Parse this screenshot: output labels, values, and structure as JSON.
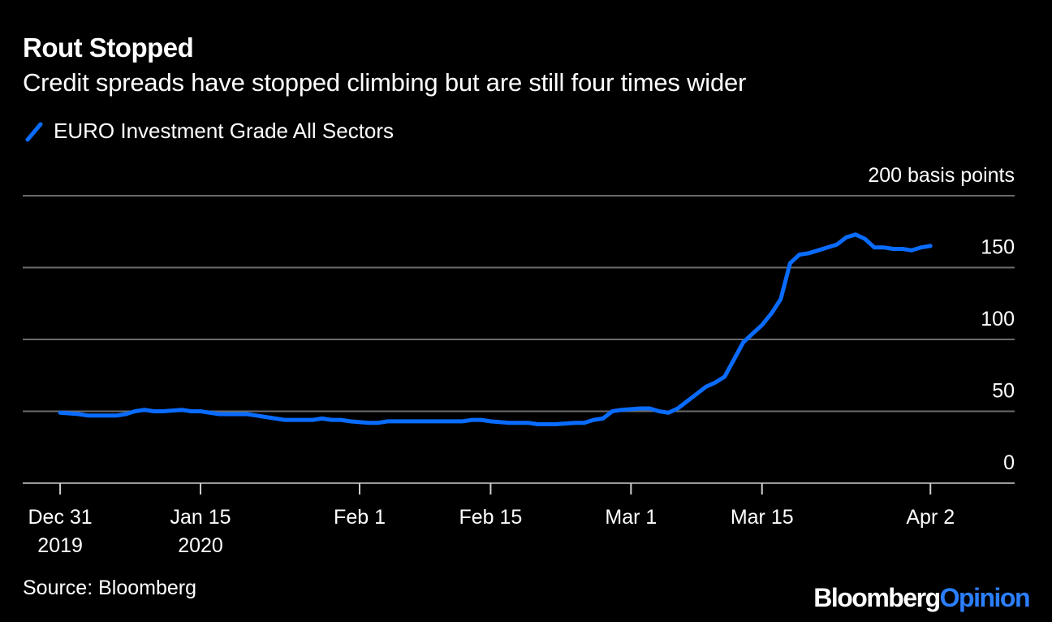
{
  "title": "Rout Stopped",
  "subtitle": "Credit spreads have stopped climbing but are still four times wider",
  "legend_label": "EURO Investment Grade All Sectors",
  "source": "Source: Bloomberg",
  "brand": {
    "part1": "Bloomberg",
    "part2": "Opinion"
  },
  "colors": {
    "background": "#000000",
    "line": "#0a6cff",
    "grid": "#6b6b6b",
    "text": "#ffffff",
    "brand_accent": "#2b7fff"
  },
  "chart_data": {
    "type": "line",
    "title": "Rout Stopped",
    "subtitle": "Credit spreads have stopped climbing but are still four times wider",
    "ylabel": "basis points",
    "ylim": [
      0,
      200
    ],
    "yticks": [
      {
        "value": 200,
        "label": "200 basis points"
      },
      {
        "value": 150,
        "label": "150"
      },
      {
        "value": 100,
        "label": "100"
      },
      {
        "value": 50,
        "label": "50"
      },
      {
        "value": 0,
        "label": "0"
      }
    ],
    "xrange_days": [
      -4,
      102
    ],
    "xticks": [
      {
        "day": 0,
        "label": [
          "Dec 31",
          "2019"
        ]
      },
      {
        "day": 15,
        "label": [
          "Jan 15",
          "2020"
        ]
      },
      {
        "day": 32,
        "label": [
          "Feb 1"
        ]
      },
      {
        "day": 46,
        "label": [
          "Feb 15"
        ]
      },
      {
        "day": 61,
        "label": [
          "Mar 1"
        ]
      },
      {
        "day": 75,
        "label": [
          "Mar 15"
        ]
      },
      {
        "day": 93,
        "label": [
          "Apr 2"
        ]
      }
    ],
    "series": [
      {
        "name": "EURO Investment Grade All Sectors",
        "x_days": [
          0,
          2,
          3,
          4,
          6,
          7,
          8,
          9,
          10,
          11,
          13,
          14,
          15,
          16,
          17,
          18,
          20,
          21,
          22,
          24,
          25,
          27,
          28,
          29,
          30,
          31,
          33,
          34,
          35,
          36,
          38,
          39,
          41,
          42,
          43,
          44,
          45,
          46,
          48,
          49,
          50,
          51,
          52,
          53,
          55,
          56,
          57,
          58,
          59,
          60,
          62,
          63,
          64,
          65,
          66,
          67,
          68,
          69,
          70,
          71,
          72,
          73,
          74,
          75,
          76,
          77,
          78,
          79,
          80,
          81,
          82,
          83,
          84,
          85,
          86,
          87,
          88,
          89,
          90,
          91,
          92,
          93
        ],
        "values": [
          49,
          48,
          47,
          47,
          47,
          48,
          50,
          51,
          50,
          50,
          51,
          50,
          50,
          49,
          48,
          48,
          48,
          47,
          46,
          44,
          44,
          44,
          45,
          44,
          44,
          43,
          42,
          42,
          43,
          43,
          43,
          43,
          43,
          43,
          43,
          44,
          44,
          43,
          42,
          42,
          42,
          41,
          41,
          41,
          42,
          42,
          44,
          45,
          50,
          51,
          52,
          52,
          50,
          49,
          52,
          57,
          62,
          67,
          70,
          74,
          86,
          98,
          104,
          110,
          118,
          128,
          153,
          159,
          160,
          162,
          164,
          166,
          171,
          173,
          170,
          164,
          164,
          163,
          163,
          162,
          164,
          165
        ]
      }
    ]
  }
}
